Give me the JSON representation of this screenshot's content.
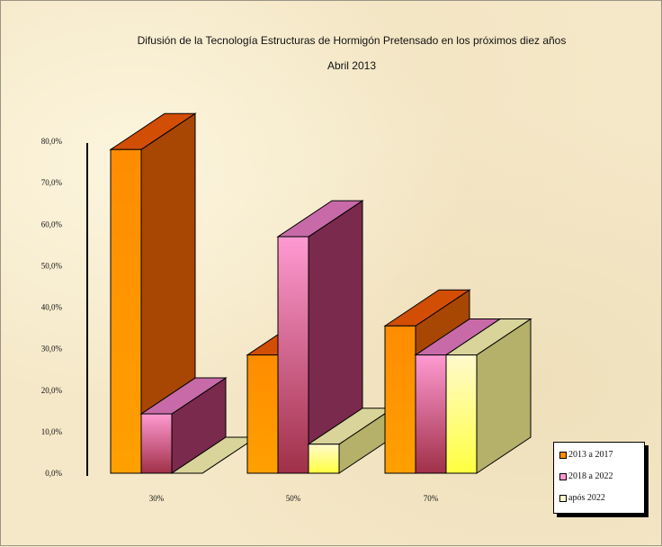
{
  "chart_data": {
    "type": "bar",
    "title": "Difusión de la Tecnología Estructuras de Hormigón Pretensado en los próximos diez años",
    "subtitle": "Abril 2013",
    "xlabel": "",
    "ylabel": "",
    "categories": [
      "30%",
      "50%",
      "70%"
    ],
    "series": [
      {
        "name": "2013 a 2017",
        "values": [
          78.0,
          28.5,
          35.5
        ]
      },
      {
        "name": "2018 a 2022",
        "values": [
          14.3,
          57.0,
          28.5
        ]
      },
      {
        "name": "após 2022",
        "values": [
          0.0,
          7.0,
          28.5
        ]
      }
    ],
    "ylim": [
      0,
      80
    ],
    "yticks": [
      "0,0%",
      "10,0%",
      "20,0%",
      "30,0%",
      "40,0%",
      "50,0%",
      "60,0%",
      "70,0%",
      "80,0%"
    ],
    "legend_position": "bottom-right",
    "grid": false,
    "style": "3d-columns"
  },
  "colors": {
    "background": "#f5e8c8",
    "series": [
      {
        "front": "#ff8c00",
        "top": "#d24e05",
        "side": "#a84604"
      },
      {
        "front": "#ff9ad2",
        "top": "#c86aa8",
        "side": "#7a2a4c"
      },
      {
        "front": "#fffacd",
        "top": "#d8d49a",
        "side": "#b5b06a"
      }
    ]
  }
}
